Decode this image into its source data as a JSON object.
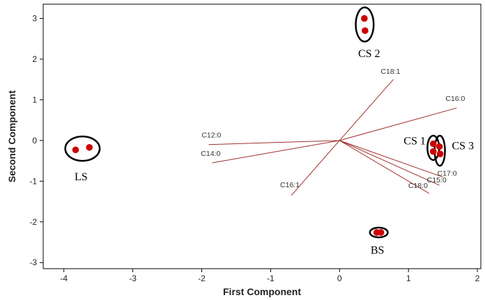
{
  "chart_data": {
    "type": "scatter",
    "title": "",
    "xlabel": "First Component",
    "ylabel": "Second Component",
    "xlim": [
      -4.3,
      2.05
    ],
    "ylim": [
      -3.15,
      3.35
    ],
    "xticks": [
      -4,
      -3,
      -2,
      -1,
      0,
      1,
      2
    ],
    "yticks": [
      -3,
      -2,
      -1,
      0,
      1,
      2,
      3
    ],
    "grid": false,
    "colors": {
      "points": "#cc0000",
      "vectors": "#a0302a",
      "frame": "#000000"
    },
    "loadings": [
      {
        "name": "C18:1",
        "x": 0.78,
        "y": 1.5
      },
      {
        "name": "C16:0",
        "x": 1.7,
        "y": 0.8
      },
      {
        "name": "C12:0",
        "x": -1.9,
        "y": -0.1
      },
      {
        "name": "C14:0",
        "x": -1.85,
        "y": -0.55
      },
      {
        "name": "C16:1",
        "x": -0.7,
        "y": -1.35
      },
      {
        "name": "C18:0",
        "x": 1.3,
        "y": -1.3
      },
      {
        "name": "C15:0",
        "x": 1.45,
        "y": -1.1
      },
      {
        "name": "C17:0",
        "x": 1.5,
        "y": -0.9
      }
    ],
    "points": [
      {
        "x": -3.83,
        "y": -0.23
      },
      {
        "x": -3.63,
        "y": -0.17
      },
      {
        "x": 0.36,
        "y": 3.0
      },
      {
        "x": 0.37,
        "y": 2.7
      },
      {
        "x": 1.36,
        "y": -0.08
      },
      {
        "x": 1.36,
        "y": -0.27
      },
      {
        "x": 1.45,
        "y": -0.15
      },
      {
        "x": 1.46,
        "y": -0.33
      },
      {
        "x": 0.54,
        "y": -2.26
      },
      {
        "x": 0.6,
        "y": -2.26
      }
    ],
    "clusters": [
      {
        "label": "LS",
        "cx": -3.73,
        "cy": -0.2,
        "rx": 0.25,
        "ry": 0.3,
        "label_x": -3.75,
        "label_y": -0.98,
        "anchor": "middle"
      },
      {
        "label": "CS 2",
        "cx": 0.365,
        "cy": 2.85,
        "rx": 0.13,
        "ry": 0.42,
        "label_x": 0.43,
        "label_y": 2.05,
        "anchor": "middle"
      },
      {
        "label": "CS 1",
        "cx": 1.36,
        "cy": -0.18,
        "rx": 0.085,
        "ry": 0.3,
        "label_x": 1.25,
        "label_y": -0.1,
        "anchor": "end"
      },
      {
        "label": "CS 3",
        "cx": 1.455,
        "cy": -0.25,
        "rx": 0.075,
        "ry": 0.37,
        "label_x": 1.63,
        "label_y": -0.22,
        "anchor": "start"
      },
      {
        "label": "BS",
        "cx": 0.57,
        "cy": -2.26,
        "rx": 0.13,
        "ry": 0.12,
        "label_x": 0.55,
        "label_y": -2.78,
        "anchor": "middle"
      }
    ]
  }
}
